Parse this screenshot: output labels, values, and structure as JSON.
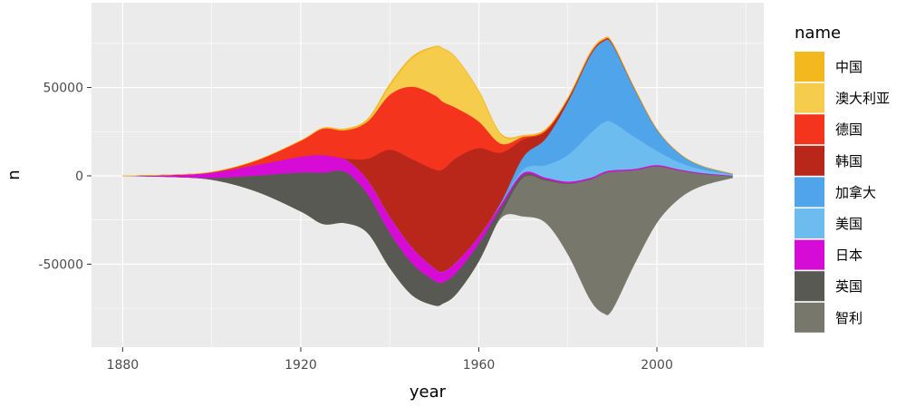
{
  "chart_data": {
    "type": "area",
    "subtype": "streamgraph",
    "title": "",
    "xlabel": "year",
    "ylabel": "n",
    "xlim": [
      1873,
      2024
    ],
    "ylim": [
      -97000,
      98000
    ],
    "x_ticks": [
      1880,
      1920,
      1960,
      2000
    ],
    "y_ticks": [
      -50000,
      0,
      50000
    ],
    "grid": true,
    "legend_position": "right",
    "legend_title": "name",
    "x": [
      1880,
      1890,
      1900,
      1910,
      1920,
      1925,
      1930,
      1935,
      1940,
      1945,
      1950,
      1952,
      1955,
      1960,
      1965,
      1970,
      1975,
      1980,
      1985,
      1988,
      1990,
      1995,
      2000,
      2005,
      2010,
      2017
    ],
    "series": [
      {
        "name": "中国",
        "color": "#F2B81E",
        "values": [
          0,
          0,
          0,
          100,
          200,
          400,
          800,
          1000,
          1200,
          1000,
          500,
          300,
          300,
          500,
          600,
          700,
          700,
          600,
          800,
          600,
          500,
          300,
          150,
          80,
          40,
          10
        ]
      },
      {
        "name": "澳大利亚",
        "color": "#F5CC4B",
        "values": [
          0,
          0,
          0,
          0,
          0,
          0,
          0,
          500,
          5000,
          16000,
          27000,
          30000,
          28000,
          17000,
          5000,
          0,
          0,
          0,
          0,
          0,
          0,
          0,
          0,
          0,
          0,
          0
        ]
      },
      {
        "name": "德国",
        "color": "#F5341E",
        "values": [
          0,
          0,
          300,
          2500,
          9000,
          15000,
          16000,
          21000,
          31000,
          41000,
          42000,
          38000,
          28000,
          15000,
          5000,
          1500,
          800,
          500,
          500,
          500,
          500,
          300,
          150,
          80,
          40,
          10
        ]
      },
      {
        "name": "韩国",
        "color": "#B9271A",
        "values": [
          0,
          0,
          0,
          0,
          0,
          0,
          600,
          12000,
          38000,
          50000,
          56000,
          58000,
          59000,
          50000,
          28000,
          10000,
          4000,
          1500,
          800,
          500,
          400,
          200,
          100,
          50,
          20,
          5
        ]
      },
      {
        "name": "加拿大",
        "color": "#4FA4EA",
        "values": [
          0,
          0,
          0,
          0,
          0,
          0,
          0,
          0,
          0,
          0,
          0,
          0,
          0,
          0,
          1000,
          7000,
          15000,
          30000,
          44000,
          46000,
          44000,
          27000,
          12000,
          5000,
          2000,
          500
        ]
      },
      {
        "name": "美国",
        "color": "#6CBCF0",
        "values": [
          0,
          0,
          0,
          0,
          0,
          0,
          0,
          0,
          0,
          0,
          0,
          0,
          0,
          0,
          0,
          2000,
          7000,
          15000,
          25000,
          28000,
          27000,
          18000,
          8000,
          4000,
          2000,
          500
        ]
      },
      {
        "name": "日本",
        "color": "#D60BD6",
        "values": [
          0,
          1000,
          3000,
          6000,
          9000,
          10000,
          7000,
          8000,
          9000,
          9000,
          7000,
          6000,
          6000,
          4000,
          2000,
          1200,
          900,
          900,
          800,
          800,
          800,
          700,
          700,
          600,
          500,
          300
        ]
      },
      {
        "name": "英国",
        "color": "#595953",
        "values": [
          0,
          0,
          1000,
          9000,
          22000,
          29000,
          29000,
          22000,
          20000,
          18000,
          14000,
          12000,
          12000,
          10000,
          4000,
          1500,
          700,
          300,
          150,
          100,
          80,
          50,
          30,
          20,
          10,
          5
        ]
      },
      {
        "name": "智利",
        "color": "#77776B",
        "values": [
          0,
          0,
          0,
          0,
          0,
          0,
          0,
          0,
          0,
          0,
          0,
          0,
          0,
          0,
          2000,
          22000,
          24000,
          40000,
          68000,
          79000,
          78000,
          53000,
          32000,
          16000,
          7000,
          1000
        ]
      }
    ]
  }
}
